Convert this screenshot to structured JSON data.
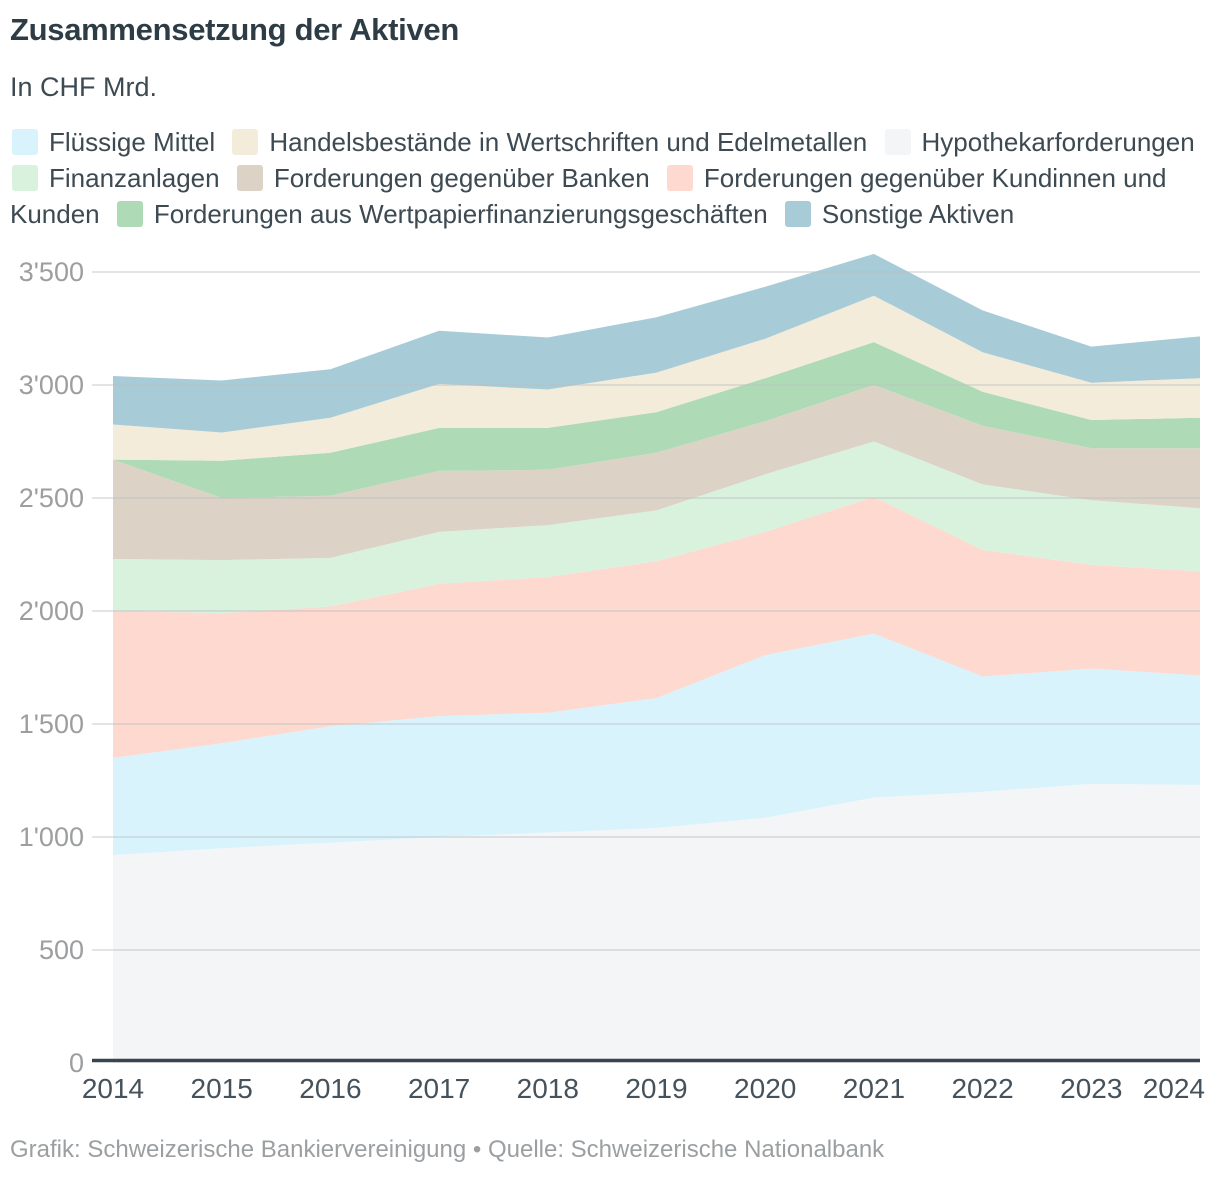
{
  "header": {
    "title": "Zusammensetzung der Aktiven",
    "subtitle": "In CHF Mrd."
  },
  "footer": {
    "caption": "Grafik: Schweizerische Bankiervereinigung • Quelle: Schweizerische Nationalbank"
  },
  "legend": {
    "items": [
      {
        "label": "Flüssige Mittel",
        "color": "#d9f3fc"
      },
      {
        "label": "Handelsbestände in Wertschriften und Edelmetallen",
        "color": "#f3ecda"
      },
      {
        "label": "Hypothekarforderungen",
        "color": "#f3f5f7"
      },
      {
        "label": "Finanzanlagen",
        "color": "#d9f2de"
      },
      {
        "label": "Forderungen gegenüber Banken",
        "color": "#dcd3c6"
      },
      {
        "label": "Forderungen gegenüber Kundinnen und Kunden",
        "color": "#fdd9cf"
      },
      {
        "label": "Forderungen aus Wertpapierfinanzierungsgeschäften",
        "color": "#aedbb6"
      },
      {
        "label": "Sonstige Aktiven",
        "color": "#a8cbd8"
      }
    ]
  },
  "chart_data": {
    "type": "area",
    "stacked": true,
    "title": "Zusammensetzung der Aktiven",
    "subtitle": "In CHF Mrd.",
    "unit": "CHF Mrd.",
    "grid": true,
    "ylim": [
      0,
      3500
    ],
    "y_tick_step": 500,
    "y_tick_labels": [
      "0",
      "500",
      "1'000",
      "1'500",
      "2'000",
      "2'500",
      "3'000",
      "3'500"
    ],
    "x_tick_labels": [
      "2014",
      "2015",
      "2016",
      "2017",
      "2018",
      "2019",
      "2020",
      "2021",
      "2022",
      "2023",
      "2024"
    ],
    "series_bottom_to_top": [
      {
        "name": "Hypothekarforderungen",
        "color": "#f3f5f7",
        "values": [
          920,
          950,
          975,
          1000,
          1020,
          1040,
          1085,
          1175,
          1200,
          1235,
          1230
        ]
      },
      {
        "name": "Flüssige Mittel",
        "color": "#d9f3fc",
        "values": [
          430,
          465,
          515,
          535,
          530,
          575,
          720,
          725,
          510,
          510,
          485
        ]
      },
      {
        "name": "Forderungen gegenüber Kundinnen und Kunden",
        "color": "#fdd9cf",
        "values": [
          650,
          575,
          530,
          585,
          600,
          605,
          545,
          605,
          560,
          460,
          460
        ]
      },
      {
        "name": "Finanzanlagen",
        "color": "#d9f2de",
        "values": [
          230,
          235,
          215,
          230,
          230,
          225,
          255,
          245,
          290,
          285,
          280
        ]
      },
      {
        "name": "Forderungen gegenüber Banken",
        "color": "#dcd3c6",
        "values": [
          440,
          275,
          275,
          270,
          245,
          255,
          235,
          250,
          260,
          230,
          265
        ]
      },
      {
        "name": "Forderungen aus Wertpapierfinanzierungsgeschäften",
        "color": "#aedbb6",
        "values": [
          0,
          165,
          190,
          190,
          185,
          180,
          190,
          190,
          150,
          125,
          135
        ]
      },
      {
        "name": "Handelsbestände in Wertschriften und Edelmetallen",
        "color": "#f3ecda",
        "values": [
          155,
          125,
          155,
          195,
          170,
          175,
          175,
          205,
          175,
          165,
          175
        ]
      },
      {
        "name": "Sonstige Aktiven",
        "color": "#a8cbd8",
        "values": [
          215,
          230,
          215,
          235,
          230,
          245,
          230,
          185,
          185,
          160,
          185
        ]
      }
    ],
    "totals": [
      3040,
      3020,
      3070,
      3240,
      3210,
      3300,
      3435,
      3580,
      3330,
      3170,
      3215
    ]
  },
  "style": {
    "gridline_color": "#bcbfc1",
    "axis_line_color": "#39444c",
    "y_label_color": "#9c9ea0",
    "x_label_color": "#46525b",
    "title_color": "#2e3c46",
    "text_color": "#3d4a52",
    "caption_color": "#9b9fa1"
  }
}
